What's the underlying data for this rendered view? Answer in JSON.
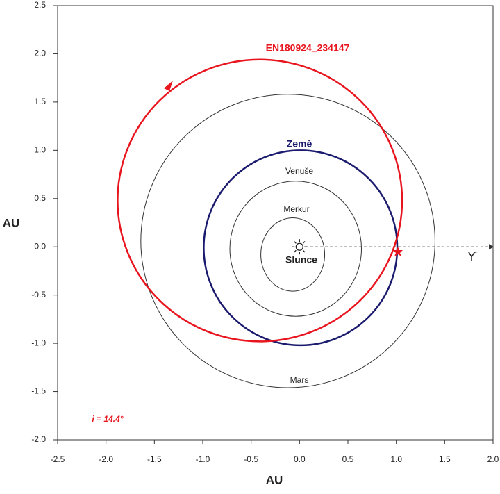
{
  "chart_data": {
    "type": "orbit",
    "xlabel": "AU",
    "ylabel": "AU",
    "xlim": [
      -2.5,
      2.0
    ],
    "ylim": [
      -2.0,
      2.5
    ],
    "xticks": [
      {
        "value": -2.5,
        "label": "-2.5"
      },
      {
        "value": -2,
        "label": "-2.0"
      },
      {
        "value": -1.5,
        "label": "-1.5"
      },
      {
        "value": -1,
        "label": "-1.0"
      },
      {
        "value": -0.5,
        "label": "-0.5"
      },
      {
        "value": 0,
        "label": "0.0"
      },
      {
        "value": 0.5,
        "label": "0.5"
      },
      {
        "value": 1,
        "label": "1.0"
      },
      {
        "value": 1.5,
        "label": "1.5"
      },
      {
        "value": 2,
        "label": "2.0"
      }
    ],
    "yticks": [
      {
        "value": -2,
        "label": "-2.0"
      },
      {
        "value": -1.5,
        "label": "-1.5"
      },
      {
        "value": -1,
        "label": "-1.0"
      },
      {
        "value": -0.5,
        "label": "-0.5"
      },
      {
        "value": 0,
        "label": "0.0"
      },
      {
        "value": 0.5,
        "label": "0.5"
      },
      {
        "value": 1,
        "label": "1.0"
      },
      {
        "value": 1.5,
        "label": "1.5"
      },
      {
        "value": 2,
        "label": "2.0"
      },
      {
        "value": 2.5,
        "label": "2.5"
      }
    ],
    "sun_label": "Slunce",
    "aries_label": "ϒ",
    "annotation": "i = 14.4°",
    "series": [
      {
        "name": "Merkur",
        "color": "#333333",
        "cx": -0.07,
        "cy": -0.08,
        "rx": 0.33,
        "ry": 0.38
      },
      {
        "name": "Venuše",
        "color": "#333333",
        "cx": -0.04,
        "cy": -0.02,
        "rx": 0.68,
        "ry": 0.7
      },
      {
        "name": "Země",
        "color": "#1a1a6e",
        "cx": 0.01,
        "cy": -0.01,
        "rx": 1.0,
        "ry": 1.01
      },
      {
        "name": "Mars",
        "color": "#333333",
        "cx": -0.12,
        "cy": 0.06,
        "rx": 1.52,
        "ry": 1.52
      },
      {
        "name": "EN180924_234147",
        "color": "#e8141e",
        "cx": -0.41,
        "cy": 0.48,
        "rx": 1.47,
        "ry": 1.46
      }
    ]
  }
}
